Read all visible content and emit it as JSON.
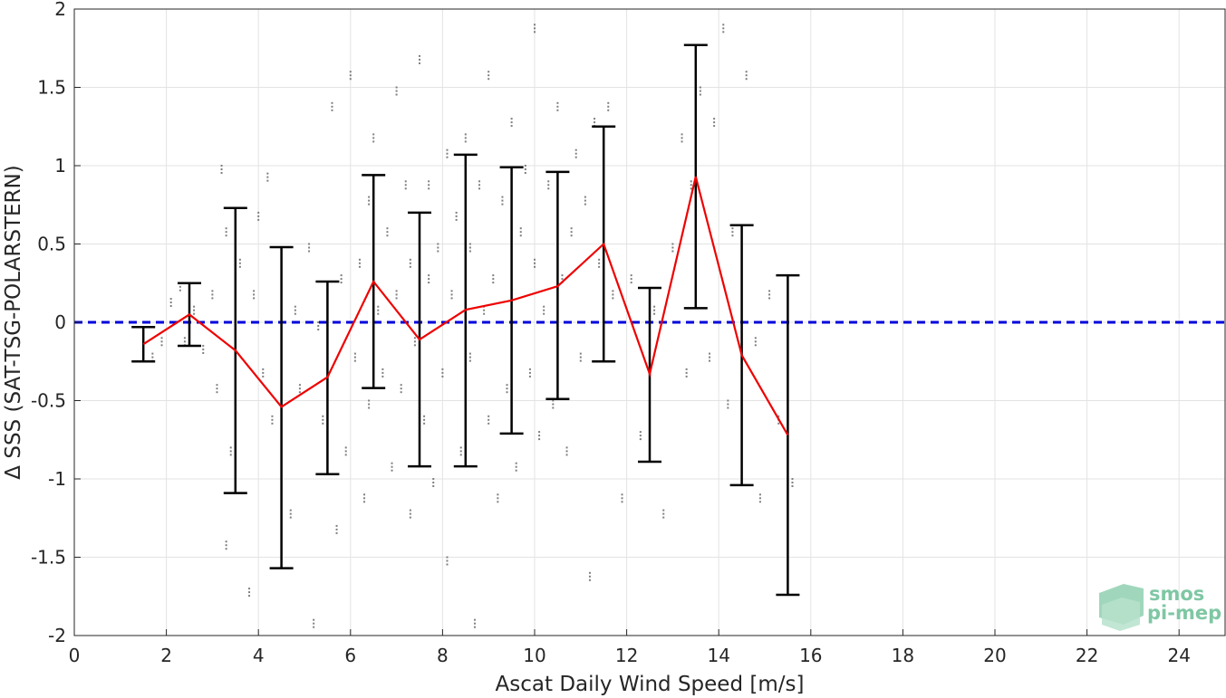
{
  "chart_data": {
    "type": "scatter",
    "xlabel": "Ascat Daily Wind Speed [m/s]",
    "ylabel": "Δ SSS (SAT-TSG-POLARSTERN)",
    "xlim": [
      0,
      25
    ],
    "ylim": [
      -2,
      2
    ],
    "xticks": [
      0,
      2,
      4,
      6,
      8,
      10,
      12,
      14,
      16,
      18,
      20,
      22,
      24
    ],
    "yticks": [
      2,
      1.5,
      1,
      0.5,
      0,
      -0.5,
      -1,
      -1.5,
      -2
    ],
    "xtick_labels": [
      "0",
      "2",
      "4",
      "6",
      "8",
      "10",
      "12",
      "14",
      "16",
      "18",
      "20",
      "22",
      "24"
    ],
    "ytick_labels": [
      "2",
      "1.5",
      "1",
      "0.5",
      "0",
      "-0.5",
      "-1",
      "-1.5",
      "-2"
    ],
    "grid": true,
    "reference_line": {
      "y": 0,
      "style": "dashed",
      "color": "#0000dd"
    },
    "mean_series": {
      "color": "#ee0000",
      "x": [
        1.5,
        2.5,
        3.5,
        4.5,
        5.5,
        6.5,
        7.5,
        8.5,
        9.5,
        10.5,
        11.5,
        12.5,
        13.5,
        14.5,
        15.5
      ],
      "y": [
        -0.14,
        0.05,
        -0.18,
        -0.54,
        -0.35,
        0.26,
        -0.11,
        0.08,
        0.14,
        0.23,
        0.5,
        -0.33,
        0.93,
        -0.21,
        -0.72
      ]
    },
    "error_bars": {
      "color": "#000000",
      "x": [
        1.5,
        2.5,
        3.5,
        4.5,
        5.5,
        6.5,
        7.5,
        8.5,
        9.5,
        10.5,
        11.5,
        12.5,
        13.5,
        14.5,
        15.5
      ],
      "lower": [
        -0.25,
        -0.15,
        -1.09,
        -1.57,
        -0.97,
        -0.42,
        -0.92,
        -0.92,
        -0.71,
        -0.49,
        -0.25,
        -0.89,
        0.09,
        -1.04,
        -1.74
      ],
      "upper": [
        -0.03,
        0.25,
        0.73,
        0.48,
        0.26,
        0.94,
        0.7,
        1.07,
        0.99,
        0.96,
        1.25,
        0.22,
        1.77,
        0.62,
        0.3
      ]
    },
    "scatter_color": "#7f7f7f",
    "scatter_x": [
      1.7,
      1.9,
      2.1,
      2.3,
      2.4,
      2.6,
      2.8,
      3.0,
      3.1,
      3.2,
      3.3,
      3.3,
      3.4,
      3.6,
      3.8,
      3.9,
      4.0,
      4.1,
      4.2,
      4.3,
      4.5,
      4.7,
      4.8,
      4.9,
      5.1,
      5.2,
      5.3,
      5.4,
      5.6,
      5.7,
      5.8,
      5.9,
      6.0,
      6.1,
      6.2,
      6.3,
      6.4,
      6.4,
      6.5,
      6.6,
      6.7,
      6.8,
      6.9,
      7.0,
      7.0,
      7.1,
      7.2,
      7.3,
      7.3,
      7.4,
      7.5,
      7.6,
      7.7,
      7.7,
      7.8,
      7.9,
      8.0,
      8.1,
      8.1,
      8.2,
      8.3,
      8.4,
      8.5,
      8.6,
      8.6,
      8.7,
      8.8,
      8.9,
      9.0,
      9.0,
      9.1,
      9.2,
      9.3,
      9.4,
      9.5,
      9.5,
      9.6,
      9.7,
      9.8,
      9.9,
      10.0,
      10.0,
      10.1,
      10.2,
      10.3,
      10.4,
      10.5,
      10.6,
      10.7,
      10.8,
      10.9,
      11.0,
      11.1,
      11.2,
      11.3,
      11.4,
      11.6,
      11.7,
      11.9,
      12.1,
      12.3,
      12.6,
      12.8,
      13.0,
      13.2,
      13.3,
      13.4,
      13.6,
      13.8,
      13.9,
      14.1,
      14.2,
      14.3,
      14.6,
      14.8,
      14.9,
      15.1,
      15.3,
      15.5,
      15.6
    ],
    "scatter_y": [
      -0.2,
      -0.1,
      0.15,
      0.25,
      -0.1,
      0.1,
      -0.15,
      0.2,
      -0.4,
      1.0,
      -1.4,
      0.6,
      -0.8,
      0.4,
      -1.7,
      0.2,
      0.7,
      -0.3,
      0.95,
      -0.6,
      0.3,
      -1.2,
      0.1,
      -0.4,
      0.5,
      -1.9,
      0.0,
      -0.6,
      1.4,
      -1.3,
      0.3,
      -0.8,
      1.6,
      -0.2,
      0.4,
      -1.1,
      0.8,
      -0.5,
      1.2,
      0.1,
      -0.3,
      0.6,
      -0.9,
      1.5,
      0.2,
      -0.4,
      0.9,
      -1.2,
      0.4,
      -0.1,
      1.7,
      -0.6,
      0.3,
      0.9,
      -1.0,
      0.5,
      -0.3,
      1.1,
      -1.5,
      0.2,
      0.7,
      -0.8,
      1.2,
      -0.2,
      0.5,
      -1.9,
      0.9,
      0.1,
      1.6,
      -0.6,
      0.3,
      -1.1,
      0.8,
      -0.4,
      1.3,
      0.2,
      -0.9,
      0.6,
      1.0,
      -0.3,
      1.9,
      0.4,
      -0.7,
      0.1,
      0.9,
      -0.5,
      1.4,
      0.3,
      -0.8,
      0.6,
      1.1,
      -0.2,
      0.8,
      -1.6,
      1.3,
      0.4,
      1.4,
      0.2,
      -1.1,
      0.3,
      -0.7,
      0.1,
      -1.2,
      0.5,
      1.2,
      -0.3,
      0.9,
      1.5,
      -0.2,
      1.3,
      1.9,
      -0.5,
      0.6,
      1.6,
      -0.1,
      -1.1,
      0.2,
      -0.6,
      -0.9,
      -1.0
    ],
    "logo": {
      "line1": "smos",
      "line2": "pi-mep"
    }
  }
}
